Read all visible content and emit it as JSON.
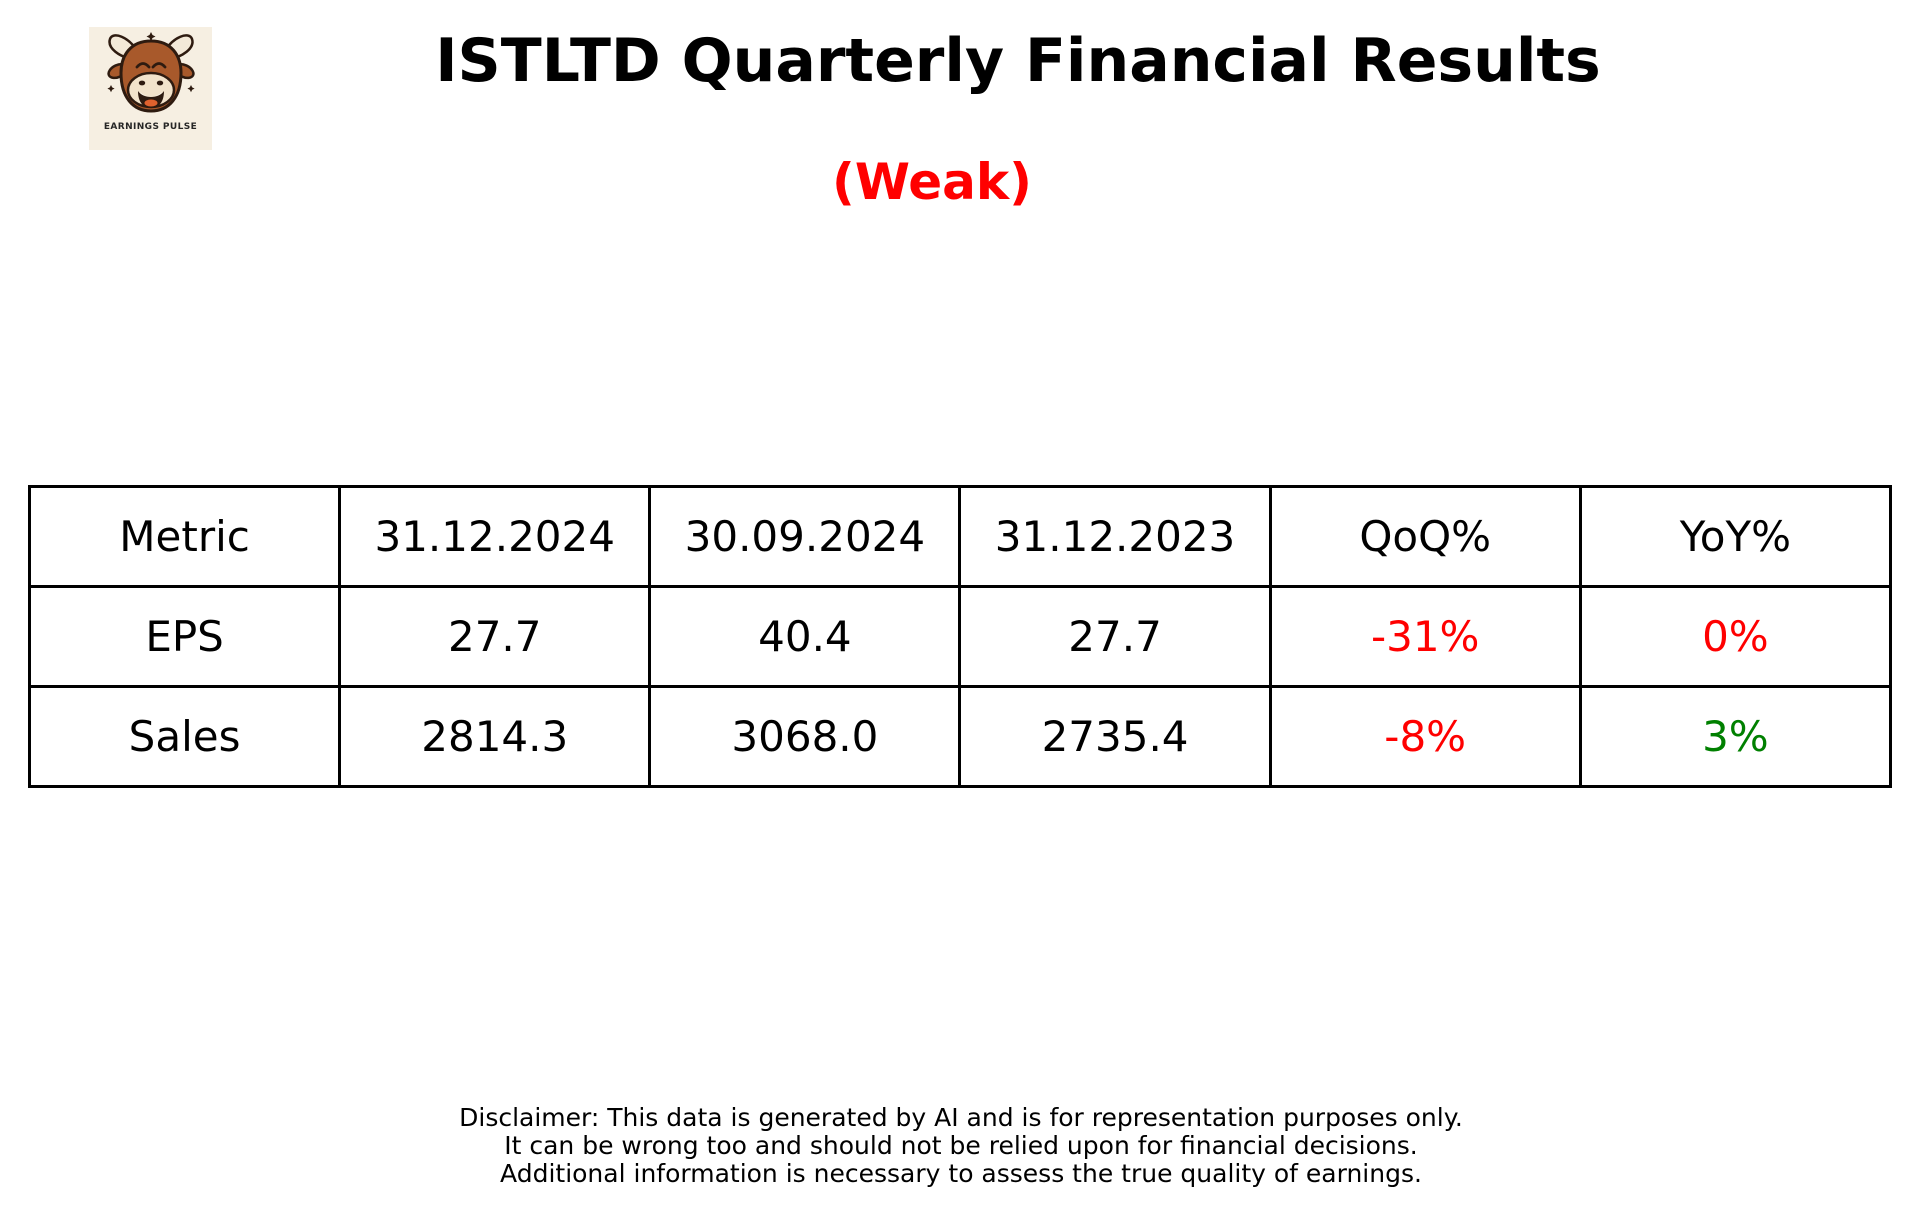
{
  "logo": {
    "brand": "EARNINGS PULSE",
    "background_color": "#f6efe2",
    "bull_color": "#a8592b"
  },
  "header": {
    "title": "ISTLTD Quarterly Financial Results",
    "verdict": "(Weak)",
    "verdict_color": "#ff0000"
  },
  "colors": {
    "negative": "#ff0000",
    "positive": "#008000",
    "text": "#000000",
    "table_border": "#000000"
  },
  "chart_data": {
    "type": "table",
    "title": "ISTLTD Quarterly Financial Results",
    "subtitle": "(Weak)",
    "columns": [
      "Metric",
      "31.12.2024",
      "30.09.2024",
      "31.12.2023",
      "QoQ%",
      "YoY%"
    ],
    "rows": [
      [
        {
          "text": "EPS"
        },
        {
          "text": "27.7"
        },
        {
          "text": "40.4"
        },
        {
          "text": "27.7"
        },
        {
          "text": "-31%",
          "color": "#ff0000"
        },
        {
          "text": "0%",
          "color": "#ff0000"
        }
      ],
      [
        {
          "text": "Sales"
        },
        {
          "text": "2814.3"
        },
        {
          "text": "3068.0"
        },
        {
          "text": "2735.4"
        },
        {
          "text": "-8%",
          "color": "#ff0000"
        },
        {
          "text": "3%",
          "color": "#008000"
        }
      ]
    ]
  },
  "disclaimer": {
    "lines": [
      "Disclaimer: This data is generated by AI and is for representation purposes only.",
      "It can be wrong too and should not be relied upon for financial decisions.",
      "Additional information is necessary to assess the true quality of earnings."
    ]
  }
}
